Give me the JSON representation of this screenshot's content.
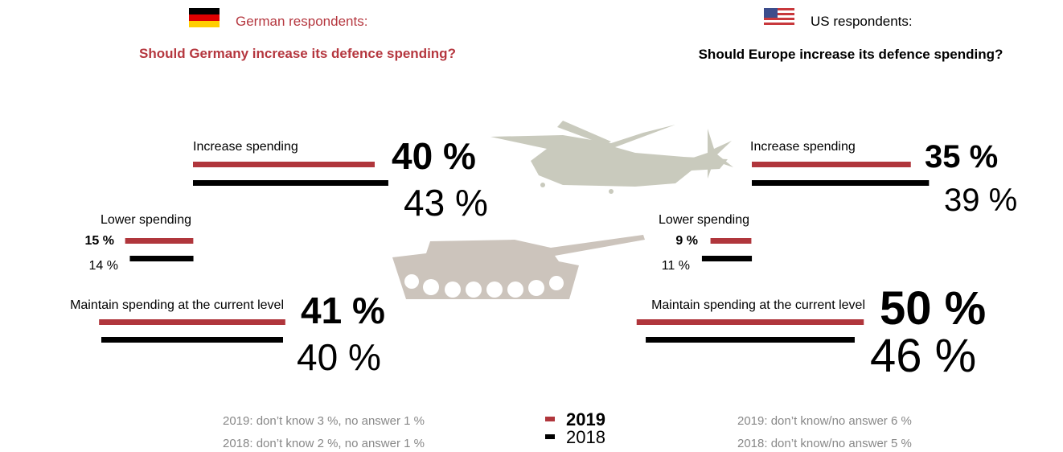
{
  "chart_data": [
    {
      "type": "bar",
      "header": "German respondents:",
      "title": "Should Germany increase its defence spending?",
      "categories": [
        "Increase spending",
        "Lower spending",
        "Maintain spending at the current level"
      ],
      "series": [
        {
          "name": "2019",
          "color": "#b0363c",
          "values": [
            40,
            15,
            41
          ],
          "value_labels": [
            "40 %",
            "15 %",
            "41 %"
          ]
        },
        {
          "name": "2018",
          "color": "#000000",
          "values": [
            43,
            14,
            40
          ],
          "value_labels": [
            "43 %",
            "14 %",
            "40 %"
          ]
        }
      ],
      "notes": [
        "2019: don’t know 3 %, no answer 1 %",
        "2018: don’t know 2 %, no answer 1 %"
      ]
    },
    {
      "type": "bar",
      "header": "US respondents:",
      "title": "Should Europe increase its defence spending?",
      "categories": [
        "Increase spending",
        "Lower spending",
        "Maintain spending at the current level"
      ],
      "series": [
        {
          "color": "#b0363c",
          "values": [
            35,
            9,
            50
          ],
          "value_labels": [
            "35 %",
            "9 %",
            "50 %"
          ]
        },
        {
          "color": "#000000",
          "values": [
            39,
            11,
            46
          ],
          "value_labels": [
            "39 %",
            "11 %",
            "46 %"
          ]
        }
      ],
      "notes": [
        "2019: don’t know/no answer 6 %",
        "2018: don’t know/no answer 5 %"
      ]
    }
  ]
}
